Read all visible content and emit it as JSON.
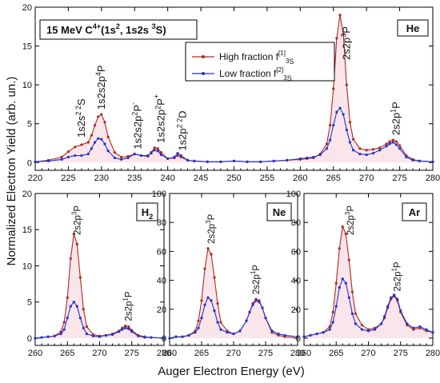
{
  "figure": {
    "ylabel": "Normalized Electron Yield (arb. un.)",
    "xlabel": "Auger Electron Energy (eV)"
  },
  "chart_data": [
    {
      "type": "line",
      "panel": "top",
      "title": "15 MeV C4+(1s2, 1s2s 3S)",
      "title_parts": {
        "ion": "15 MeV C",
        "charge": "4+",
        "config": "(1s",
        "sq": "2",
        "mid": ", 1s2s ",
        "mult": "3",
        "term": "S)"
      },
      "target": "He",
      "xlim": [
        220,
        280
      ],
      "ylim": [
        -1,
        20
      ],
      "xticks": [
        220,
        225,
        230,
        235,
        240,
        245,
        250,
        255,
        260,
        265,
        270,
        275,
        280
      ],
      "yticks": [
        0,
        5,
        10,
        15,
        20
      ],
      "legend_position": "upper-right",
      "series": [
        {
          "name": "High fraction f[1]3S",
          "label_parts": {
            "text": "High fraction f",
            "sup": "[1]",
            "sub": "3",
            "tail": "S"
          },
          "color": "#b02a1f",
          "x": [
            220,
            222,
            224,
            225,
            226,
            227,
            228,
            228.5,
            229,
            229.5,
            230,
            230.5,
            231,
            232,
            233,
            234,
            235,
            236,
            237,
            237.5,
            238,
            238.5,
            239,
            240,
            241,
            241.5,
            242,
            243,
            244,
            246,
            248,
            250,
            252,
            254,
            256,
            258,
            260,
            261,
            262,
            263,
            264,
            264.5,
            265,
            265.5,
            266,
            266.5,
            267,
            267.5,
            268,
            269,
            270,
            271,
            272,
            273,
            273.5,
            274,
            274.5,
            275,
            276,
            277,
            278,
            280
          ],
          "y": [
            0.1,
            0.3,
            0.7,
            1.4,
            2.0,
            2.3,
            2.6,
            3.5,
            4.8,
            5.9,
            6.2,
            5.2,
            3.3,
            1.3,
            0.7,
            0.8,
            1.1,
            0.9,
            0.8,
            1.3,
            1.9,
            1.8,
            1.3,
            0.5,
            0.6,
            0.9,
            0.7,
            0.3,
            0.2,
            0.1,
            0.1,
            0.2,
            0.1,
            0.1,
            0.2,
            0.3,
            0.4,
            0.5,
            0.6,
            1.1,
            2.4,
            4.8,
            9.5,
            16.0,
            19.0,
            16.5,
            10.0,
            5.2,
            3.0,
            1.8,
            1.6,
            1.7,
            1.9,
            2.4,
            2.7,
            2.9,
            2.7,
            2.2,
            0.9,
            0.4,
            0.2,
            0.1
          ]
        },
        {
          "name": "Low fraction f[2]3S",
          "label_parts": {
            "text": "Low fraction f",
            "sup": "[2]",
            "sub": "3",
            "tail": "S"
          },
          "color": "#2233cc",
          "x": [
            220,
            222,
            224,
            225,
            226,
            227,
            228,
            228.5,
            229,
            229.5,
            230,
            230.5,
            231,
            232,
            233,
            234,
            235,
            236,
            237,
            237.5,
            238,
            238.5,
            239,
            240,
            241,
            241.5,
            242,
            243,
            244,
            246,
            248,
            250,
            252,
            254,
            256,
            258,
            260,
            261,
            262,
            263,
            264,
            264.5,
            265,
            265.5,
            266,
            266.5,
            267,
            267.5,
            268,
            269,
            270,
            271,
            272,
            273,
            273.5,
            274,
            274.5,
            275,
            276,
            277,
            278,
            280
          ],
          "y": [
            0.1,
            0.2,
            0.4,
            0.7,
            0.9,
            0.9,
            1.1,
            1.8,
            2.6,
            3.1,
            3.0,
            2.4,
            1.5,
            0.6,
            0.4,
            0.6,
            1.1,
            0.9,
            0.9,
            1.2,
            1.6,
            1.5,
            1.0,
            0.5,
            0.7,
            1.2,
            0.9,
            0.3,
            0.2,
            0.1,
            0.1,
            0.2,
            0.1,
            0.1,
            0.2,
            0.3,
            0.5,
            0.6,
            0.7,
            1.0,
            1.8,
            2.9,
            4.8,
            6.5,
            7.0,
            6.2,
            4.2,
            2.6,
            1.6,
            1.1,
            1.0,
            1.2,
            1.6,
            2.1,
            2.4,
            2.6,
            2.3,
            1.8,
            0.7,
            0.3,
            0.2,
            0.1
          ]
        }
      ],
      "annotations": [
        {
          "x": 227,
          "parts": [
            "1s2s",
            "2 2",
            "S"
          ]
        },
        {
          "x": 230,
          "parts": [
            "1s2s2p",
            "4",
            "P"
          ]
        },
        {
          "x": 235.5,
          "parts": [
            "1s2s2p",
            "2",
            "P",
            "-"
          ]
        },
        {
          "x": 239,
          "parts": [
            "1s2s2p",
            "2",
            "P",
            "+"
          ]
        },
        {
          "x": 242.3,
          "parts": [
            "1s2p",
            "2 2",
            "D"
          ]
        },
        {
          "x": 267,
          "parts": [
            "2s2p",
            "3",
            "P"
          ]
        },
        {
          "x": 274.5,
          "parts": [
            "2s2p",
            "1",
            "P"
          ]
        }
      ]
    },
    {
      "type": "line",
      "panel": "bottom-left",
      "target": "H2",
      "target_parts": {
        "sym": "H",
        "sub": "2"
      },
      "xlim": [
        260,
        280
      ],
      "ylim": [
        -1,
        20
      ],
      "xticks": [
        260,
        265,
        270,
        275,
        280
      ],
      "yticks": [
        0,
        5,
        10,
        15,
        20
      ],
      "series": [
        {
          "name": "High fraction",
          "color": "#b02a1f",
          "x": [
            260,
            261,
            262,
            263,
            264,
            264.5,
            265,
            265.5,
            266,
            266.5,
            267,
            267.5,
            268,
            269,
            270,
            271,
            272,
            273,
            273.5,
            274,
            274.5,
            275,
            276,
            277,
            278,
            280
          ],
          "y": [
            0,
            0.1,
            0.2,
            0.3,
            0.9,
            2.2,
            5.6,
            11.0,
            14.4,
            13.0,
            8.4,
            4.0,
            1.6,
            0.5,
            0.3,
            0.4,
            0.6,
            1.0,
            1.4,
            1.7,
            1.6,
            1.1,
            0.4,
            0.2,
            0.1,
            0
          ]
        },
        {
          "name": "Low fraction",
          "color": "#2233cc",
          "x": [
            260,
            261,
            262,
            263,
            264,
            264.5,
            265,
            265.5,
            266,
            266.5,
            267,
            267.5,
            268,
            269,
            270,
            271,
            272,
            273,
            273.5,
            274,
            274.5,
            275,
            276,
            277,
            278,
            280
          ],
          "y": [
            0,
            0.1,
            0.2,
            0.3,
            0.6,
            1.2,
            2.8,
            4.4,
            5.0,
            4.4,
            2.8,
            1.4,
            0.6,
            0.3,
            0.2,
            0.4,
            0.5,
            0.9,
            1.2,
            1.4,
            1.3,
            0.9,
            0.3,
            0.1,
            0.1,
            0
          ]
        }
      ],
      "annotations": [
        {
          "x": 266.5,
          "parts": [
            "2s2p",
            "3",
            "P"
          ]
        },
        {
          "x": 274.5,
          "parts": [
            "2s2p",
            "1",
            "P"
          ]
        }
      ]
    },
    {
      "type": "line",
      "panel": "bottom-middle",
      "target": "Ne",
      "xlim": [
        260,
        280
      ],
      "ylim": [
        -5,
        100
      ],
      "xticks": [
        260,
        265,
        270,
        275,
        280
      ],
      "yticks": [
        0,
        20,
        40,
        60,
        80,
        100
      ],
      "series": [
        {
          "name": "High fraction",
          "color": "#b02a1f",
          "x": [
            260,
            261,
            262,
            263,
            264,
            264.5,
            265,
            265.5,
            266,
            266.5,
            267,
            267.5,
            268,
            269,
            270,
            271,
            272,
            272.5,
            273,
            273.5,
            274,
            274.5,
            275,
            276,
            277,
            278,
            280
          ],
          "y": [
            0,
            1,
            1,
            2,
            5,
            12,
            26,
            48,
            62,
            58,
            42,
            24,
            11,
            5,
            3,
            5,
            12,
            18,
            24,
            27,
            26,
            21,
            14,
            4,
            2,
            1,
            0
          ]
        },
        {
          "name": "Low fraction",
          "color": "#2233cc",
          "x": [
            260,
            261,
            262,
            263,
            264,
            264.5,
            265,
            265.5,
            266,
            266.5,
            267,
            267.5,
            268,
            269,
            270,
            271,
            272,
            272.5,
            273,
            273.5,
            274,
            274.5,
            275,
            276,
            277,
            278,
            280
          ],
          "y": [
            0,
            1,
            1,
            2,
            4,
            7,
            14,
            23,
            28,
            26,
            19,
            11,
            6,
            4,
            3,
            5,
            12,
            18,
            23,
            26,
            25,
            21,
            14,
            5,
            3,
            2,
            1
          ]
        }
      ],
      "annotations": [
        {
          "x": 266.5,
          "parts": [
            "2s2p",
            "3",
            "P"
          ]
        },
        {
          "x": 273.5,
          "parts": [
            "2s2p",
            "1",
            "P"
          ]
        }
      ]
    },
    {
      "type": "line",
      "panel": "bottom-right",
      "target": "Ar",
      "xlim": [
        260,
        280
      ],
      "ylim": [
        -5,
        100
      ],
      "xticks": [
        260,
        265,
        270,
        275,
        280
      ],
      "yticks": [
        0,
        20,
        40,
        60,
        80,
        100
      ],
      "series": [
        {
          "name": "High fraction",
          "color": "#b02a1f",
          "x": [
            260,
            261,
            262,
            263,
            264,
            264.5,
            265,
            265.5,
            266,
            266.5,
            267,
            267.5,
            268,
            269,
            270,
            271,
            272,
            272.5,
            273,
            273.5,
            274,
            274.5,
            275,
            276,
            277,
            278,
            279,
            280
          ],
          "y": [
            1,
            2,
            3,
            4,
            8,
            18,
            38,
            62,
            77,
            72,
            54,
            32,
            17,
            9,
            6,
            7,
            10,
            14,
            21,
            27,
            29,
            26,
            18,
            9,
            6,
            7,
            5,
            4
          ]
        },
        {
          "name": "Low fraction",
          "color": "#2233cc",
          "x": [
            260,
            261,
            262,
            263,
            264,
            264.5,
            265,
            265.5,
            266,
            266.5,
            267,
            267.5,
            268,
            269,
            270,
            271,
            272,
            272.5,
            273,
            273.5,
            274,
            274.5,
            275,
            276,
            277,
            278,
            279,
            280
          ],
          "y": [
            1,
            2,
            3,
            4,
            6,
            11,
            22,
            35,
            41,
            38,
            28,
            17,
            10,
            6,
            5,
            6,
            10,
            15,
            22,
            28,
            30,
            27,
            19,
            10,
            7,
            8,
            6,
            4
          ]
        }
      ],
      "annotations": [
        {
          "x": 267.2,
          "parts": [
            "2s2p",
            "3",
            "P"
          ]
        },
        {
          "x": 274.5,
          "parts": [
            "2s2p",
            "1",
            "P"
          ]
        }
      ]
    }
  ]
}
